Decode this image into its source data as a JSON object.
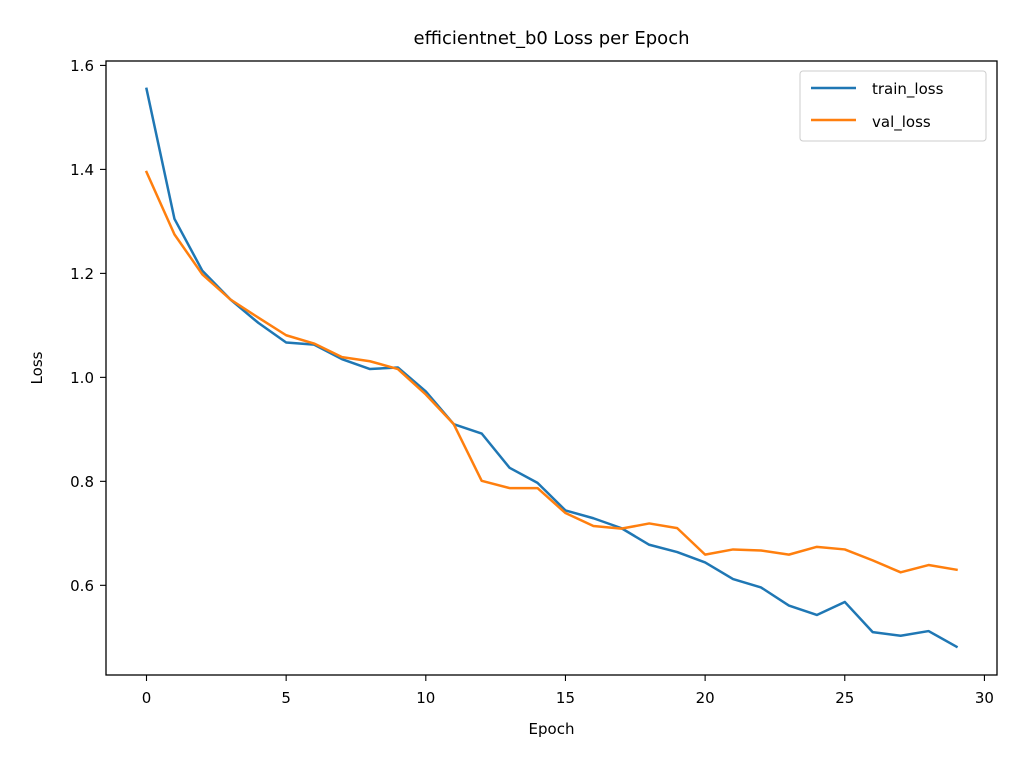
{
  "chart_data": {
    "type": "line",
    "title": "efficientnet_b0 Loss per Epoch",
    "xlabel": "Epoch",
    "ylabel": "Loss",
    "xlim": [
      -1.45,
      30.45
    ],
    "ylim": [
      0.4275,
      1.6085
    ],
    "xticks": [
      0,
      5,
      10,
      15,
      20,
      25,
      30
    ],
    "xtick_labels": [
      "0",
      "5",
      "10",
      "15",
      "20",
      "25",
      "30"
    ],
    "yticks": [
      0.6,
      0.8,
      1.0,
      1.2,
      1.4,
      1.6
    ],
    "ytick_labels": [
      "0.6",
      "0.8",
      "1.0",
      "1.2",
      "1.4",
      "1.6"
    ],
    "grid": false,
    "legend_position": "top-right",
    "x": [
      0,
      1,
      2,
      3,
      4,
      5,
      6,
      7,
      8,
      9,
      10,
      11,
      12,
      13,
      14,
      15,
      16,
      17,
      18,
      19,
      20,
      21,
      22,
      23,
      24,
      25,
      26,
      27,
      28,
      29
    ],
    "series": [
      {
        "name": "train_loss",
        "color": "#1f77b4",
        "values": [
          1.555,
          1.305,
          1.205,
          1.15,
          1.105,
          1.067,
          1.063,
          1.035,
          1.016,
          1.019,
          0.973,
          0.91,
          0.892,
          0.826,
          0.797,
          0.744,
          0.729,
          0.71,
          0.678,
          0.664,
          0.644,
          0.612,
          0.596,
          0.561,
          0.543,
          0.568,
          0.51,
          0.503,
          0.512,
          0.482
        ]
      },
      {
        "name": "val_loss",
        "color": "#ff7f0e",
        "values": [
          1.395,
          1.275,
          1.198,
          1.15,
          1.115,
          1.081,
          1.065,
          1.039,
          1.031,
          1.016,
          0.967,
          0.91,
          0.801,
          0.787,
          0.787,
          0.739,
          0.714,
          0.709,
          0.719,
          0.71,
          0.659,
          0.669,
          0.667,
          0.659,
          0.674,
          0.669,
          0.648,
          0.625,
          0.639,
          0.63
        ]
      }
    ]
  }
}
